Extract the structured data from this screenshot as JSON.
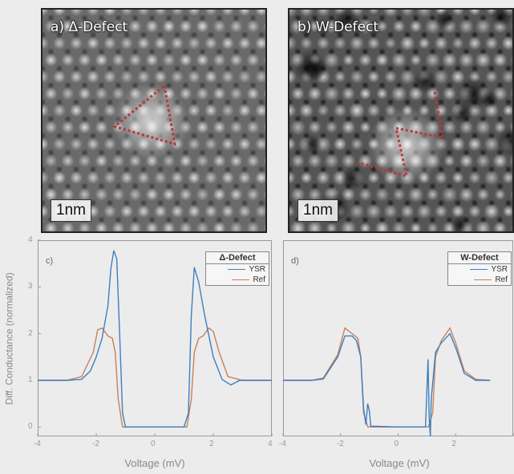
{
  "images": {
    "a": {
      "title": "a) Δ-Defect",
      "scale": "1nm"
    },
    "b": {
      "title": "b) W-Defect",
      "scale": "1nm"
    }
  },
  "colors": {
    "ysr": "#3f7fbf",
    "ref": "#c8805a",
    "marker": "#b8383a"
  },
  "chart_data": [
    {
      "type": "line",
      "panel": "c)",
      "legend_title": "Δ-Defect",
      "xlabel": "Voltage (mV)",
      "ylabel": "Diff. Conductance (normalized)",
      "xlim": [
        -4,
        4
      ],
      "ylim": [
        -0.2,
        4
      ],
      "xticks": [
        "-4",
        "-2",
        "0",
        "2",
        "4"
      ],
      "yticks": [
        "0",
        "1",
        "2",
        "3",
        "4"
      ],
      "series": [
        {
          "name": "YSR",
          "points": [
            [
              -4,
              1.0
            ],
            [
              -3,
              1.0
            ],
            [
              -2.5,
              1.02
            ],
            [
              -2.2,
              1.2
            ],
            [
              -2.0,
              1.5
            ],
            [
              -1.8,
              1.9
            ],
            [
              -1.6,
              2.6
            ],
            [
              -1.5,
              3.4
            ],
            [
              -1.4,
              3.78
            ],
            [
              -1.3,
              3.6
            ],
            [
              -1.2,
              2.0
            ],
            [
              -1.1,
              0.3
            ],
            [
              -1.0,
              0.0
            ],
            [
              0.0,
              0.0
            ],
            [
              1.0,
              0.0
            ],
            [
              1.15,
              0.3
            ],
            [
              1.25,
              2.4
            ],
            [
              1.35,
              3.42
            ],
            [
              1.5,
              3.1
            ],
            [
              1.7,
              2.4
            ],
            [
              2.0,
              1.5
            ],
            [
              2.3,
              1.02
            ],
            [
              2.6,
              0.9
            ],
            [
              2.9,
              1.0
            ],
            [
              3.2,
              1.0
            ],
            [
              4,
              1.0
            ]
          ]
        },
        {
          "name": "Ref",
          "points": [
            [
              -4,
              1.0
            ],
            [
              -3,
              1.0
            ],
            [
              -2.5,
              1.08
            ],
            [
              -2.1,
              1.6
            ],
            [
              -1.95,
              2.08
            ],
            [
              -1.8,
              2.12
            ],
            [
              -1.6,
              1.95
            ],
            [
              -1.45,
              1.9
            ],
            [
              -1.35,
              1.6
            ],
            [
              -1.25,
              0.6
            ],
            [
              -1.1,
              0.0
            ],
            [
              0.0,
              0.0
            ],
            [
              1.1,
              0.0
            ],
            [
              1.25,
              0.6
            ],
            [
              1.35,
              1.6
            ],
            [
              1.5,
              1.9
            ],
            [
              1.65,
              1.95
            ],
            [
              1.85,
              2.12
            ],
            [
              2.0,
              2.05
            ],
            [
              2.2,
              1.6
            ],
            [
              2.5,
              1.08
            ],
            [
              3,
              1.0
            ],
            [
              4,
              1.0
            ]
          ]
        }
      ]
    },
    {
      "type": "line",
      "panel": "d)",
      "legend_title": "W-Defect",
      "xlabel": "Voltage (mV)",
      "xlim": [
        -4,
        4
      ],
      "ylim": [
        -0.2,
        4
      ],
      "xticks": [
        "-4",
        "-2",
        "0",
        "2"
      ],
      "series": [
        {
          "name": "YSR",
          "points": [
            [
              -4,
              1.0
            ],
            [
              -3,
              1.0
            ],
            [
              -2.6,
              1.03
            ],
            [
              -2.1,
              1.5
            ],
            [
              -1.85,
              1.95
            ],
            [
              -1.6,
              1.95
            ],
            [
              -1.45,
              1.85
            ],
            [
              -1.3,
              1.5
            ],
            [
              -1.2,
              0.4
            ],
            [
              -1.12,
              0.05
            ],
            [
              -1.06,
              0.5
            ],
            [
              -1.0,
              0.35
            ],
            [
              -0.95,
              0.02
            ],
            [
              0.0,
              0.0
            ],
            [
              0.95,
              0.0
            ],
            [
              1.0,
              0.8
            ],
            [
              1.04,
              1.45
            ],
            [
              1.08,
              0.2
            ],
            [
              1.12,
              -0.2
            ],
            [
              1.15,
              0.6
            ],
            [
              1.3,
              1.6
            ],
            [
              1.5,
              1.8
            ],
            [
              1.8,
              2.0
            ],
            [
              2.0,
              1.7
            ],
            [
              2.3,
              1.15
            ],
            [
              2.7,
              1.0
            ],
            [
              3.2,
              1.0
            ]
          ]
        },
        {
          "name": "Ref",
          "points": [
            [
              -4,
              1.0
            ],
            [
              -3,
              1.0
            ],
            [
              -2.6,
              1.05
            ],
            [
              -2.1,
              1.55
            ],
            [
              -1.85,
              2.12
            ],
            [
              -1.6,
              2.0
            ],
            [
              -1.4,
              1.9
            ],
            [
              -1.3,
              1.5
            ],
            [
              -1.2,
              0.3
            ],
            [
              -1.05,
              0.0
            ],
            [
              0.0,
              0.0
            ],
            [
              1.05,
              0.0
            ],
            [
              1.2,
              0.3
            ],
            [
              1.3,
              1.5
            ],
            [
              1.5,
              1.85
            ],
            [
              1.8,
              2.12
            ],
            [
              2.0,
              1.8
            ],
            [
              2.3,
              1.2
            ],
            [
              2.7,
              1.02
            ],
            [
              3.2,
              1.0
            ]
          ]
        }
      ]
    }
  ]
}
